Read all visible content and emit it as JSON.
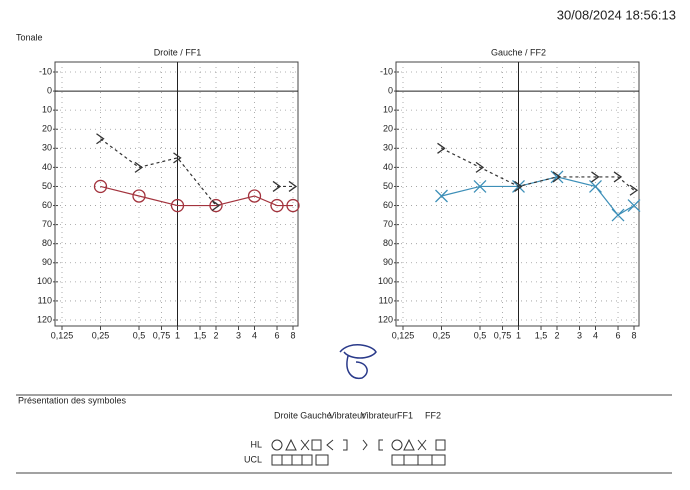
{
  "header": {
    "datetime": "30/08/2024 18:56:13",
    "section": "Tonale"
  },
  "chart_data": [
    {
      "type": "line",
      "title": "Droite / FF1",
      "log_x": true,
      "y_inverted": true,
      "grid": true,
      "x": [
        0.25,
        0.5,
        1,
        2,
        4,
        6,
        8
      ],
      "series": [
        {
          "color": "#a3333d",
          "marker": "circle",
          "dashed": false,
          "values": [
            50,
            55,
            60,
            60,
            55,
            60,
            60
          ]
        },
        {
          "color": "#333333",
          "marker": "chevron",
          "dashed": true,
          "values": [
            25,
            40,
            35,
            60,
            null,
            50,
            50
          ]
        }
      ],
      "xlim": [
        0.125,
        8
      ],
      "ylim": [
        -10,
        120
      ],
      "xticks": [
        {
          "value": 0.125,
          "label": "0,125"
        },
        {
          "value": 0.25,
          "label": "0,25"
        },
        {
          "value": 0.5,
          "label": "0,5"
        },
        {
          "value": 0.75,
          "label": "0,75"
        },
        1,
        {
          "value": 1.5,
          "label": "1,5"
        },
        2,
        3,
        4,
        6,
        8
      ],
      "yticks": [
        -10,
        0,
        10,
        20,
        30,
        40,
        50,
        60,
        70,
        80,
        90,
        100,
        110,
        120
      ]
    },
    {
      "type": "line",
      "title": "Gauche / FF2",
      "log_x": true,
      "y_inverted": true,
      "grid": true,
      "x": [
        0.25,
        0.5,
        1,
        2,
        4,
        6,
        8
      ],
      "series": [
        {
          "color": "#3d8fb8",
          "marker": "cross",
          "dashed": false,
          "values": [
            55,
            50,
            50,
            45,
            50,
            65,
            60
          ]
        },
        {
          "color": "#333333",
          "marker": "chevron",
          "dashed": true,
          "values": [
            30,
            40,
            50,
            45,
            45,
            45,
            52
          ]
        }
      ],
      "xlim": [
        0.125,
        8
      ],
      "ylim": [
        -10,
        120
      ],
      "xticks": [
        {
          "value": 0.125,
          "label": "0,125"
        },
        {
          "value": 0.25,
          "label": "0,25"
        },
        {
          "value": 0.5,
          "label": "0,5"
        },
        {
          "value": 0.75,
          "label": "0,75"
        },
        1,
        {
          "value": 1.5,
          "label": "1,5"
        },
        2,
        3,
        4,
        6,
        8
      ],
      "yticks": [
        -10,
        0,
        10,
        20,
        30,
        40,
        50,
        60,
        70,
        80,
        90,
        100,
        110,
        120
      ]
    }
  ],
  "legend": {
    "title": "Présentation des symboles",
    "columns": [
      "Droite",
      "Gauche",
      "Vibrateur",
      "Vibrateur",
      "FF1",
      "FF2"
    ],
    "rows": [
      "HL",
      "UCL"
    ]
  }
}
